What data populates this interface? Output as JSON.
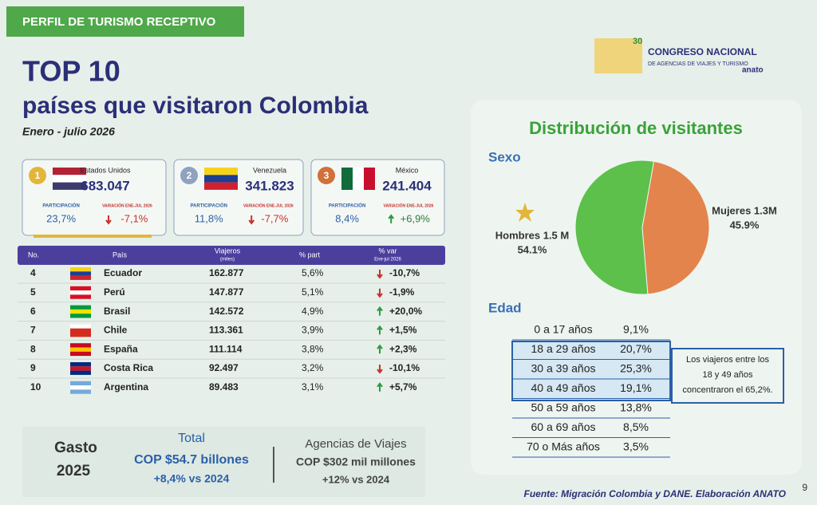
{
  "header": {
    "badge": "PERFIL DE TURISMO RECEPTIVO",
    "title": "TOP 10",
    "subtitle": "países que visitaron Colombia",
    "period": "Enero - julio 2026"
  },
  "logo": {
    "number": "30",
    "line1": "CONGRESO NACIONAL",
    "line2": "DE AGENCIAS DE VIAJES Y TURISMO",
    "brand": "anato"
  },
  "top3": [
    {
      "rank": "1",
      "country": "Estados Unidos",
      "value": "683.047",
      "part_label": "PARTICIPACIÓN",
      "part": "23,7%",
      "var_label": "VARIACIÓN ENE-JUL 2026",
      "var": "-7,1%",
      "trend": "down"
    },
    {
      "rank": "2",
      "country": "Venezuela",
      "value": "341.823",
      "part_label": "PARTICIPACIÓN",
      "part": "11,8%",
      "var_label": "VARIACIÓN ENE-JUL 2026",
      "var": "-7,7%",
      "trend": "down"
    },
    {
      "rank": "3",
      "country": "México",
      "value": "241.404",
      "part_label": "PARTICIPACIÓN",
      "part": "8,4%",
      "var_label": "VARIACIÓN ENE-JUL 2026",
      "var": "+6,9%",
      "trend": "up"
    }
  ],
  "table": {
    "headers": [
      "No.",
      "País",
      "Viajeros",
      "% part",
      "% var"
    ],
    "subheaders": [
      "(miles)",
      "Ene-jul 2026"
    ],
    "rows": [
      [
        "4",
        "Ecuador",
        "162.877",
        "5,6%",
        "-10,7%"
      ],
      [
        "5",
        "Perú",
        "147.877",
        "5,1%",
        "-1,9%"
      ],
      [
        "6",
        "Brasil",
        "142.572",
        "4,9%",
        "+20,0%"
      ],
      [
        "7",
        "Chile",
        "113.361",
        "3,9%",
        "+1,5%"
      ],
      [
        "8",
        "España",
        "111.114",
        "3,8%",
        "+2,3%"
      ],
      [
        "9",
        "Costa Rica",
        "92.497",
        "3,2%",
        "-10,1%"
      ],
      [
        "10",
        "Argentina",
        "89.483",
        "3,1%",
        "+5,7%"
      ]
    ],
    "trends": [
      "down",
      "down",
      "up",
      "up",
      "up",
      "down",
      "up"
    ]
  },
  "gasto": {
    "label": [
      "Gasto",
      "2025"
    ],
    "total": [
      "Total",
      "COP $54.7 billones",
      "+8,4% vs 2024"
    ],
    "agencias": [
      "Agencias de Viajes",
      "COP $302 mil millones",
      "+12% vs 2024"
    ]
  },
  "distribution": {
    "title": "Distribución de visitantes",
    "sex_label": "Sexo",
    "sex": {
      "type": "pie",
      "slices": [
        {
          "name": "Hombres 1.5 M",
          "value": 54.1,
          "value_label": "54.1%",
          "color": "#5cc04a"
        },
        {
          "name": "Mujeres 1.3M",
          "value": 45.9,
          "value_label": "45.9%",
          "color": "#e2844c"
        }
      ]
    },
    "age_label": "Edad",
    "ages": [
      [
        "0 a 17 años",
        "9,1%"
      ],
      [
        "18 a 29 años",
        "20,7%"
      ],
      [
        "30 a 39 años",
        "25,3%"
      ],
      [
        "40 a 49 años",
        "19,1%"
      ],
      [
        "50 a 59 años",
        "13,8%"
      ],
      [
        "60 a 69 años",
        "8,5%"
      ],
      [
        "70 o Más años",
        "3,5%"
      ]
    ],
    "note": [
      "Los viajeros entre los",
      "18 y 49 años",
      "concentraron el 65,2%."
    ]
  },
  "footer": {
    "source": "Fuente: Migración Colombia y DANE. Elaboración ANATO",
    "page": "9"
  }
}
